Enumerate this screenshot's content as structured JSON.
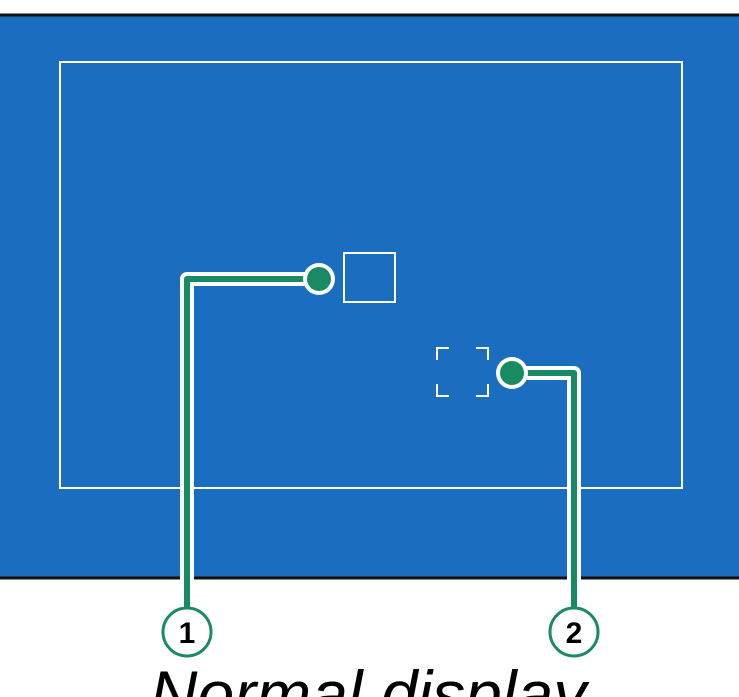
{
  "colors": {
    "screen": "#1a6dbf",
    "frame_border": "#111111",
    "outline": "#ffffff",
    "leader": "#1a8a63",
    "label_text": "#000000"
  },
  "callouts": [
    {
      "number": "1",
      "target": "focus-frame"
    },
    {
      "number": "2",
      "target": "focus-area-brackets"
    }
  ],
  "caption": "Normal display"
}
